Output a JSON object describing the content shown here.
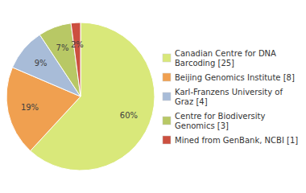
{
  "chart_data": {
    "type": "pie",
    "categories": [
      "Canadian Centre for DNA\nBarcoding [25]",
      "Beijing Genomics Institute [8]",
      "Karl-Franzens University of\nGraz [4]",
      "Centre for Biodiversity\nGenomics [3]",
      "Mined from GenBank, NCBI [1]"
    ],
    "values": [
      60,
      19,
      9,
      7,
      2
    ],
    "value_labels": [
      "60%",
      "19%",
      "9%",
      "7%",
      "2%"
    ],
    "colors": [
      "#d9e87a",
      "#f0a050",
      "#a8bcd8",
      "#b8c865",
      "#cc5040"
    ],
    "data_labels": true,
    "legend": "right"
  }
}
